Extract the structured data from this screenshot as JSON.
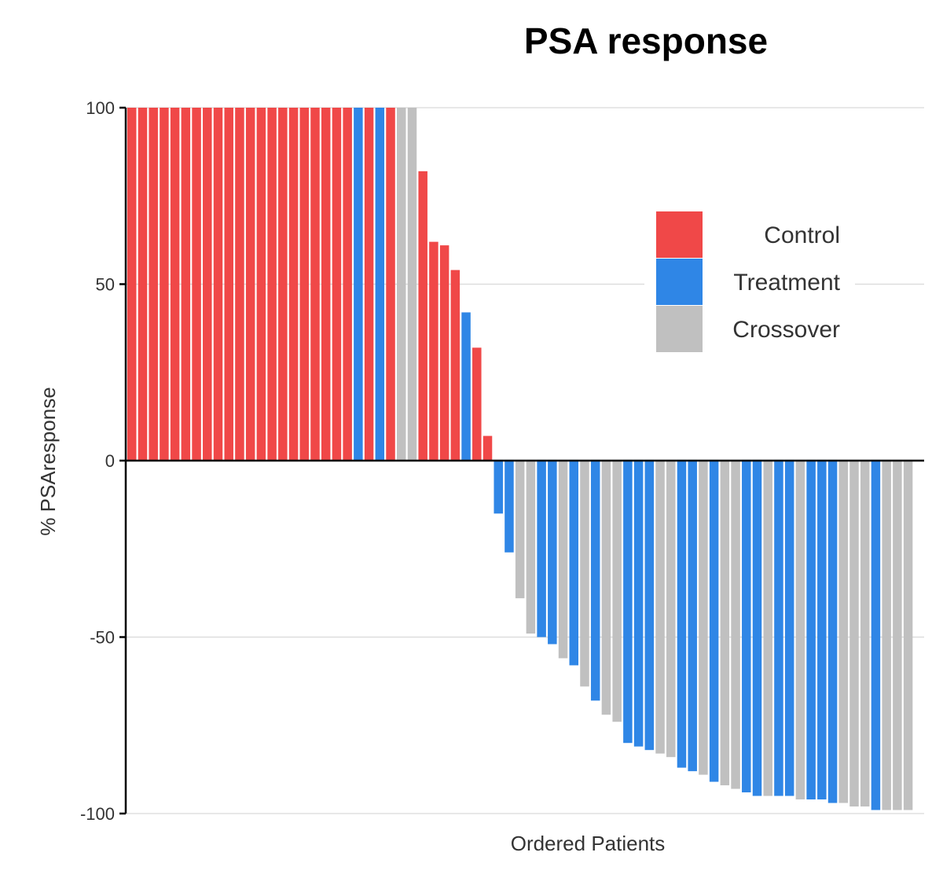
{
  "chart_data": {
    "type": "bar",
    "title": "PSA response",
    "xlabel": "Ordered Patients",
    "ylabel": "% PSAresponse",
    "ylim": [
      -100,
      100
    ],
    "yticks": [
      100,
      50,
      0,
      -50,
      -100
    ],
    "grid": true,
    "legend_position": "top-right",
    "legend": [
      {
        "name": "Control",
        "color": "#f04848"
      },
      {
        "name": "Treatment",
        "color": "#2f86e6"
      },
      {
        "name": "Crossover",
        "color": "#c0c0c0"
      }
    ],
    "bars": [
      {
        "group": "Control",
        "value": 100
      },
      {
        "group": "Control",
        "value": 100
      },
      {
        "group": "Control",
        "value": 100
      },
      {
        "group": "Control",
        "value": 100
      },
      {
        "group": "Control",
        "value": 100
      },
      {
        "group": "Control",
        "value": 100
      },
      {
        "group": "Control",
        "value": 100
      },
      {
        "group": "Control",
        "value": 100
      },
      {
        "group": "Control",
        "value": 100
      },
      {
        "group": "Control",
        "value": 100
      },
      {
        "group": "Control",
        "value": 100
      },
      {
        "group": "Control",
        "value": 100
      },
      {
        "group": "Control",
        "value": 100
      },
      {
        "group": "Control",
        "value": 100
      },
      {
        "group": "Control",
        "value": 100
      },
      {
        "group": "Control",
        "value": 100
      },
      {
        "group": "Control",
        "value": 100
      },
      {
        "group": "Control",
        "value": 100
      },
      {
        "group": "Control",
        "value": 100
      },
      {
        "group": "Control",
        "value": 100
      },
      {
        "group": "Control",
        "value": 100
      },
      {
        "group": "Treatment",
        "value": 100
      },
      {
        "group": "Control",
        "value": 100
      },
      {
        "group": "Treatment",
        "value": 100
      },
      {
        "group": "Control",
        "value": 100
      },
      {
        "group": "Crossover",
        "value": 100
      },
      {
        "group": "Crossover",
        "value": 100
      },
      {
        "group": "Control",
        "value": 82
      },
      {
        "group": "Control",
        "value": 62
      },
      {
        "group": "Control",
        "value": 61
      },
      {
        "group": "Control",
        "value": 54
      },
      {
        "group": "Treatment",
        "value": 42
      },
      {
        "group": "Control",
        "value": 32
      },
      {
        "group": "Control",
        "value": 7
      },
      {
        "group": "Treatment",
        "value": -15
      },
      {
        "group": "Treatment",
        "value": -26
      },
      {
        "group": "Crossover",
        "value": -39
      },
      {
        "group": "Crossover",
        "value": -49
      },
      {
        "group": "Treatment",
        "value": -50
      },
      {
        "group": "Treatment",
        "value": -52
      },
      {
        "group": "Crossover",
        "value": -56
      },
      {
        "group": "Treatment",
        "value": -58
      },
      {
        "group": "Crossover",
        "value": -64
      },
      {
        "group": "Treatment",
        "value": -68
      },
      {
        "group": "Crossover",
        "value": -72
      },
      {
        "group": "Crossover",
        "value": -74
      },
      {
        "group": "Treatment",
        "value": -80
      },
      {
        "group": "Treatment",
        "value": -81
      },
      {
        "group": "Treatment",
        "value": -82
      },
      {
        "group": "Crossover",
        "value": -83
      },
      {
        "group": "Crossover",
        "value": -84
      },
      {
        "group": "Treatment",
        "value": -87
      },
      {
        "group": "Treatment",
        "value": -88
      },
      {
        "group": "Crossover",
        "value": -89
      },
      {
        "group": "Treatment",
        "value": -91
      },
      {
        "group": "Crossover",
        "value": -92
      },
      {
        "group": "Crossover",
        "value": -93
      },
      {
        "group": "Treatment",
        "value": -94
      },
      {
        "group": "Treatment",
        "value": -95
      },
      {
        "group": "Crossover",
        "value": -95
      },
      {
        "group": "Treatment",
        "value": -95
      },
      {
        "group": "Treatment",
        "value": -95
      },
      {
        "group": "Crossover",
        "value": -96
      },
      {
        "group": "Treatment",
        "value": -96
      },
      {
        "group": "Treatment",
        "value": -96
      },
      {
        "group": "Treatment",
        "value": -97
      },
      {
        "group": "Crossover",
        "value": -97
      },
      {
        "group": "Crossover",
        "value": -98
      },
      {
        "group": "Crossover",
        "value": -98
      },
      {
        "group": "Treatment",
        "value": -99
      },
      {
        "group": "Crossover",
        "value": -99
      },
      {
        "group": "Crossover",
        "value": -99
      },
      {
        "group": "Crossover",
        "value": -99
      }
    ]
  }
}
